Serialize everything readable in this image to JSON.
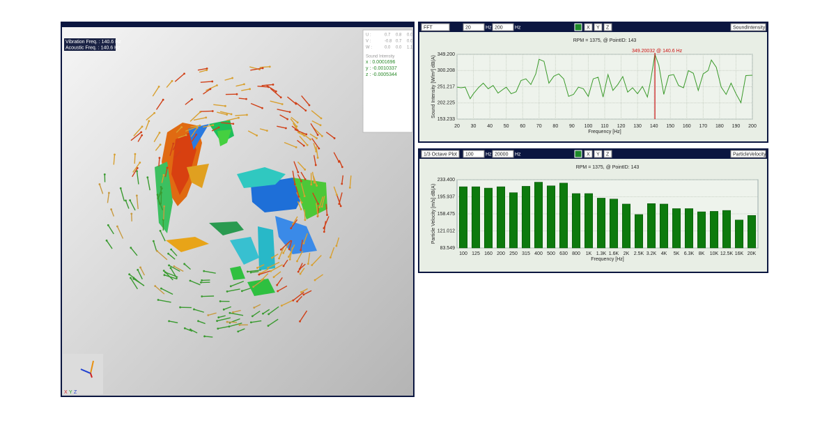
{
  "viewer": {
    "labels": [
      "Vibration Freq. : 140.6 Hz",
      "Acoustic Freq. : 140.6 Hz"
    ],
    "matrix": [
      [
        "U :",
        "0.7",
        "0.8",
        "0.0"
      ],
      [
        "V :",
        "-0.8",
        "0.7",
        "0.0"
      ],
      [
        "W :",
        "0.0",
        "0.0",
        "1.1"
      ]
    ],
    "intensity_title": "Sound Intensity",
    "intensity": [
      "x : 0.0001696",
      "y : -0.0010337",
      "z : -0.0005344"
    ],
    "axes": [
      "X",
      "Y",
      "Z"
    ]
  },
  "panels": [
    {
      "toolbar": {
        "mode": "FFT",
        "from": "20",
        "unit1": "Hz",
        "to": "200",
        "unit2": "Hz",
        "axes": [
          "X",
          "Y",
          "Z"
        ],
        "quantity": "SoundIntensity"
      }
    },
    {
      "toolbar": {
        "mode": "1/3 Octave Plot",
        "from": "100",
        "unit1": "Hz",
        "to": "20000",
        "unit2": "Hz",
        "axes": [
          "X",
          "Y",
          "Z"
        ],
        "quantity": "ParticleVelocity"
      }
    }
  ],
  "chart_data": [
    {
      "type": "line",
      "title": "RPM = 1375, @ PointID: 143",
      "x_label": "Frequency [Hz]",
      "y_label": "Sound Intensity [W/m²] dB(A)",
      "x": [
        20,
        22.5,
        25,
        28,
        30,
        33,
        36,
        39,
        42,
        45,
        48,
        50,
        53,
        56,
        59,
        62,
        65,
        68,
        70,
        73,
        76,
        79,
        82,
        85,
        88,
        91,
        94,
        97,
        100,
        103,
        106,
        109,
        112,
        115,
        118,
        121,
        124,
        127,
        130,
        133,
        136,
        138,
        140.6,
        143,
        146,
        149,
        152,
        155,
        158,
        161,
        164,
        167,
        170,
        173,
        175,
        178,
        181,
        184,
        187,
        190,
        193,
        196,
        200
      ],
      "values": [
        250,
        248,
        250,
        215,
        230,
        248,
        262,
        245,
        255,
        232,
        243,
        250,
        230,
        236,
        270,
        275,
        258,
        290,
        334,
        328,
        262,
        283,
        290,
        275,
        222,
        228,
        250,
        245,
        222,
        275,
        280,
        220,
        288,
        240,
        258,
        282,
        235,
        248,
        230,
        252,
        220,
        270,
        349.2,
        316,
        228,
        285,
        288,
        255,
        248,
        300,
        292,
        240,
        290,
        300,
        332,
        310,
        250,
        228,
        262,
        230,
        203,
        285,
        286
      ],
      "color": "#3a9a2a",
      "xlim": [
        20,
        200
      ],
      "xticks": [
        20,
        30,
        40,
        50,
        60,
        70,
        80,
        90,
        100,
        110,
        120,
        130,
        140,
        150,
        160,
        170,
        180,
        190,
        200
      ],
      "ylim": [
        153.233,
        349.2
      ],
      "yticks": [
        {
          "value": 349.2,
          "label": "349.200"
        },
        300.208,
        251.217,
        202.225,
        153.233
      ],
      "marker_x": 140.6,
      "marker_color": "#cc1111",
      "annotation": "349.20032 @ 140.6 Hz",
      "grid": true
    },
    {
      "type": "bar",
      "title": "RPM = 1375, @ PointID: 143",
      "x_label": "Frequency [Hz]",
      "y_label": "Particle Velocity [m/s] dB(A)",
      "categories": [
        "100",
        "125",
        "160",
        "200",
        "250",
        "315",
        "400",
        "500",
        "630",
        "800",
        "1K",
        "1.3K",
        "1.6K",
        "2K",
        "2.5K",
        "3.2K",
        "4K",
        "5K",
        "6.3K",
        "8K",
        "10K",
        "12.5K",
        "16K",
        "20K"
      ],
      "values": [
        218,
        218,
        215,
        218,
        205,
        219,
        228,
        220,
        226,
        203,
        203,
        193,
        191,
        180,
        157,
        181,
        180,
        170,
        170,
        163,
        164,
        166,
        145,
        155
      ],
      "color": "#0d7a0d",
      "ylim": [
        83.549,
        233.4
      ],
      "yticks": [
        {
          "value": 233.4,
          "label": "233.400"
        },
        195.937,
        158.475,
        121.012,
        83.549
      ],
      "grid": true
    }
  ]
}
